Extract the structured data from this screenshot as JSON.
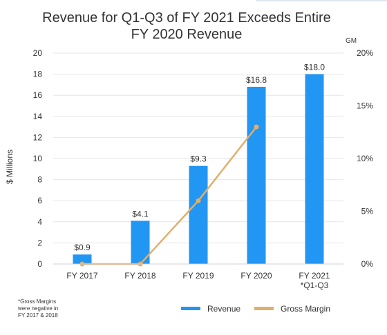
{
  "chart_data": {
    "type": "bar",
    "title_lines": [
      "Revenue for Q1-Q3 of FY 2021 Exceeds Entire",
      "FY 2020 Revenue"
    ],
    "categories": [
      [
        "FY 2017"
      ],
      [
        "FY 2018"
      ],
      [
        "FY 2019"
      ],
      [
        "FY 2020"
      ],
      [
        "FY 2021",
        "*Q1-Q3"
      ]
    ],
    "series": [
      {
        "name": "Revenue",
        "kind": "bar",
        "axis": "left",
        "color": "#2196F3",
        "values": [
          0.9,
          4.1,
          9.3,
          16.8,
          18.0
        ],
        "labels": [
          "$0.9",
          "$4.1",
          "$9.3",
          "$16.8",
          "$18.0"
        ]
      },
      {
        "name": "Gross Margin",
        "kind": "line",
        "axis": "right",
        "color": "#E2AE6B",
        "values": [
          0,
          0,
          6,
          13,
          null
        ]
      }
    ],
    "ylabel": "$ Millions",
    "ylim": [
      0,
      20
    ],
    "yticks": [
      0,
      2,
      4,
      6,
      8,
      10,
      12,
      14,
      16,
      18,
      20
    ],
    "y2label": "GM",
    "y2lim": [
      0,
      20
    ],
    "y2ticks": [
      0,
      5,
      10,
      15,
      20
    ],
    "y2tick_labels": [
      "0%",
      "5%",
      "10%",
      "15%",
      "20%"
    ],
    "grid": true,
    "legend_position": "bottom",
    "footnote_lines": [
      "*Gross Margins",
      "were negative in",
      "FY 2017 & 2018"
    ]
  }
}
